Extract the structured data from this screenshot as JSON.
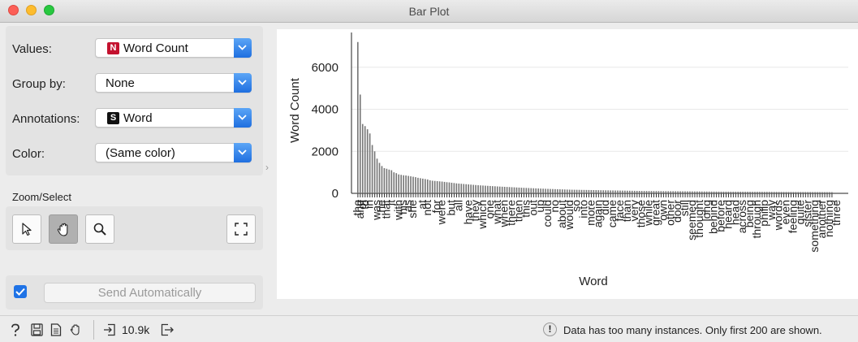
{
  "window": {
    "title": "Bar Plot"
  },
  "controls": {
    "values": {
      "label": "Values:",
      "selected": "Word Count",
      "badge": "N"
    },
    "group_by": {
      "label": "Group by:",
      "selected": "None"
    },
    "annotations": {
      "label": "Annotations:",
      "selected": "Word",
      "badge": "S"
    },
    "color": {
      "label": "Color:",
      "selected": "(Same color)"
    }
  },
  "zoom": {
    "label": "Zoom/Select"
  },
  "send": {
    "label": "Send Automatically",
    "checked": true
  },
  "status": {
    "count": "10.9k",
    "warning": "Data has too many instances. Only first 200 are shown."
  },
  "chart_data": {
    "type": "bar",
    "xlabel": "Word",
    "ylabel": "Word Count",
    "ylim": [
      0,
      7500
    ],
    "yticks": [
      0,
      2000,
      4000,
      6000
    ],
    "grid": true,
    "num_bars": 200,
    "values": [
      7200,
      4700,
      3300,
      3200,
      3050,
      2850,
      2300,
      2000,
      1650,
      1450,
      1300,
      1200,
      1170,
      1130,
      1100,
      1000,
      960,
      900,
      880,
      860,
      850,
      830,
      810,
      790,
      770,
      740,
      720,
      700,
      680,
      660,
      620,
      600,
      590,
      580,
      570,
      560,
      545,
      530,
      520,
      505,
      490,
      475,
      465,
      455,
      445,
      435,
      425,
      415,
      405,
      395,
      385,
      378,
      371,
      364,
      357,
      350,
      343,
      336,
      329,
      322,
      316,
      310,
      304,
      298,
      292,
      286,
      280,
      274,
      268,
      262,
      257,
      252,
      247,
      242,
      237,
      232,
      227,
      222,
      217,
      212,
      208,
      204,
      200,
      196,
      192,
      188,
      184,
      180,
      176,
      172,
      170,
      168,
      166,
      164,
      162,
      160,
      158,
      156,
      154,
      152,
      150,
      148,
      146,
      144,
      142,
      140,
      138,
      136,
      134,
      132,
      130,
      128,
      126,
      124,
      122,
      120,
      118,
      116,
      114,
      112,
      111,
      110,
      109,
      108,
      107,
      106,
      105,
      104,
      103,
      102,
      101,
      100,
      99,
      98,
      97,
      96,
      95,
      94,
      93,
      92,
      91,
      90,
      89,
      88,
      87,
      86,
      85,
      84,
      83,
      82,
      81,
      80,
      80,
      79,
      79,
      78,
      78,
      77,
      77,
      76,
      76,
      75,
      75,
      74,
      74,
      73,
      73,
      72,
      72,
      71,
      71,
      70,
      70,
      69,
      69,
      68,
      68,
      67,
      67,
      66,
      66,
      65,
      65,
      64,
      64,
      63,
      63,
      62,
      62,
      61,
      61,
      60,
      60,
      59,
      59,
      58,
      58,
      57
    ],
    "visible_labels": [
      {
        "i": 0,
        "text": "the"
      },
      {
        "i": 1,
        "text": "and"
      },
      {
        "i": 2,
        "text": "of"
      },
      {
        "i": 3,
        "text": "to"
      },
      {
        "i": 5,
        "text": "in"
      },
      {
        "i": 8,
        "text": "was"
      },
      {
        "i": 10,
        "text": "he"
      },
      {
        "i": 12,
        "text": "that"
      },
      {
        "i": 14,
        "text": "it"
      },
      {
        "i": 17,
        "text": "with"
      },
      {
        "i": 19,
        "text": "his"
      },
      {
        "i": 21,
        "text": "as"
      },
      {
        "i": 23,
        "text": "she"
      },
      {
        "i": 27,
        "text": "at"
      },
      {
        "i": 29,
        "text": "not"
      },
      {
        "i": 33,
        "text": "for"
      },
      {
        "i": 35,
        "text": "were"
      },
      {
        "i": 39,
        "text": "but"
      },
      {
        "i": 42,
        "text": "all"
      },
      {
        "i": 46,
        "text": "have"
      },
      {
        "i": 49,
        "text": "they"
      },
      {
        "i": 52,
        "text": "which"
      },
      {
        "i": 55,
        "text": "one"
      },
      {
        "i": 58,
        "text": "what"
      },
      {
        "i": 61,
        "text": "when"
      },
      {
        "i": 64,
        "text": "there"
      },
      {
        "i": 67,
        "text": "then"
      },
      {
        "i": 70,
        "text": "this"
      },
      {
        "i": 73,
        "text": "out"
      },
      {
        "i": 76,
        "text": "up"
      },
      {
        "i": 79,
        "text": "could"
      },
      {
        "i": 82,
        "text": "no"
      },
      {
        "i": 85,
        "text": "about"
      },
      {
        "i": 88,
        "text": "would"
      },
      {
        "i": 91,
        "text": "so"
      },
      {
        "i": 94,
        "text": "into"
      },
      {
        "i": 97,
        "text": "more"
      },
      {
        "i": 100,
        "text": "again"
      },
      {
        "i": 103,
        "text": "did"
      },
      {
        "i": 106,
        "text": "came"
      },
      {
        "i": 109,
        "text": "face"
      },
      {
        "i": 112,
        "text": "than"
      },
      {
        "i": 115,
        "text": "very"
      },
      {
        "i": 118,
        "text": "those"
      },
      {
        "i": 121,
        "text": "while"
      },
      {
        "i": 124,
        "text": "great"
      },
      {
        "i": 127,
        "text": "own"
      },
      {
        "i": 130,
        "text": "other"
      },
      {
        "i": 133,
        "text": "door"
      },
      {
        "i": 136,
        "text": "still"
      },
      {
        "i": 139,
        "text": "seemed"
      },
      {
        "i": 142,
        "text": "thought"
      },
      {
        "i": 145,
        "text": "long"
      },
      {
        "i": 148,
        "text": "behind"
      },
      {
        "i": 151,
        "text": "before"
      },
      {
        "i": 154,
        "text": "heard"
      },
      {
        "i": 157,
        "text": "head"
      },
      {
        "i": 160,
        "text": "across"
      },
      {
        "i": 163,
        "text": "being"
      },
      {
        "i": 166,
        "text": "through"
      },
      {
        "i": 169,
        "text": "philip"
      },
      {
        "i": 172,
        "text": "way"
      },
      {
        "i": 175,
        "text": "words"
      },
      {
        "i": 178,
        "text": "even"
      },
      {
        "i": 181,
        "text": "feeling"
      },
      {
        "i": 184,
        "text": "quite"
      },
      {
        "i": 187,
        "text": "sister"
      },
      {
        "i": 190,
        "text": "something"
      },
      {
        "i": 193,
        "text": "another"
      },
      {
        "i": 196,
        "text": "nothing"
      },
      {
        "i": 199,
        "text": "three"
      }
    ]
  }
}
